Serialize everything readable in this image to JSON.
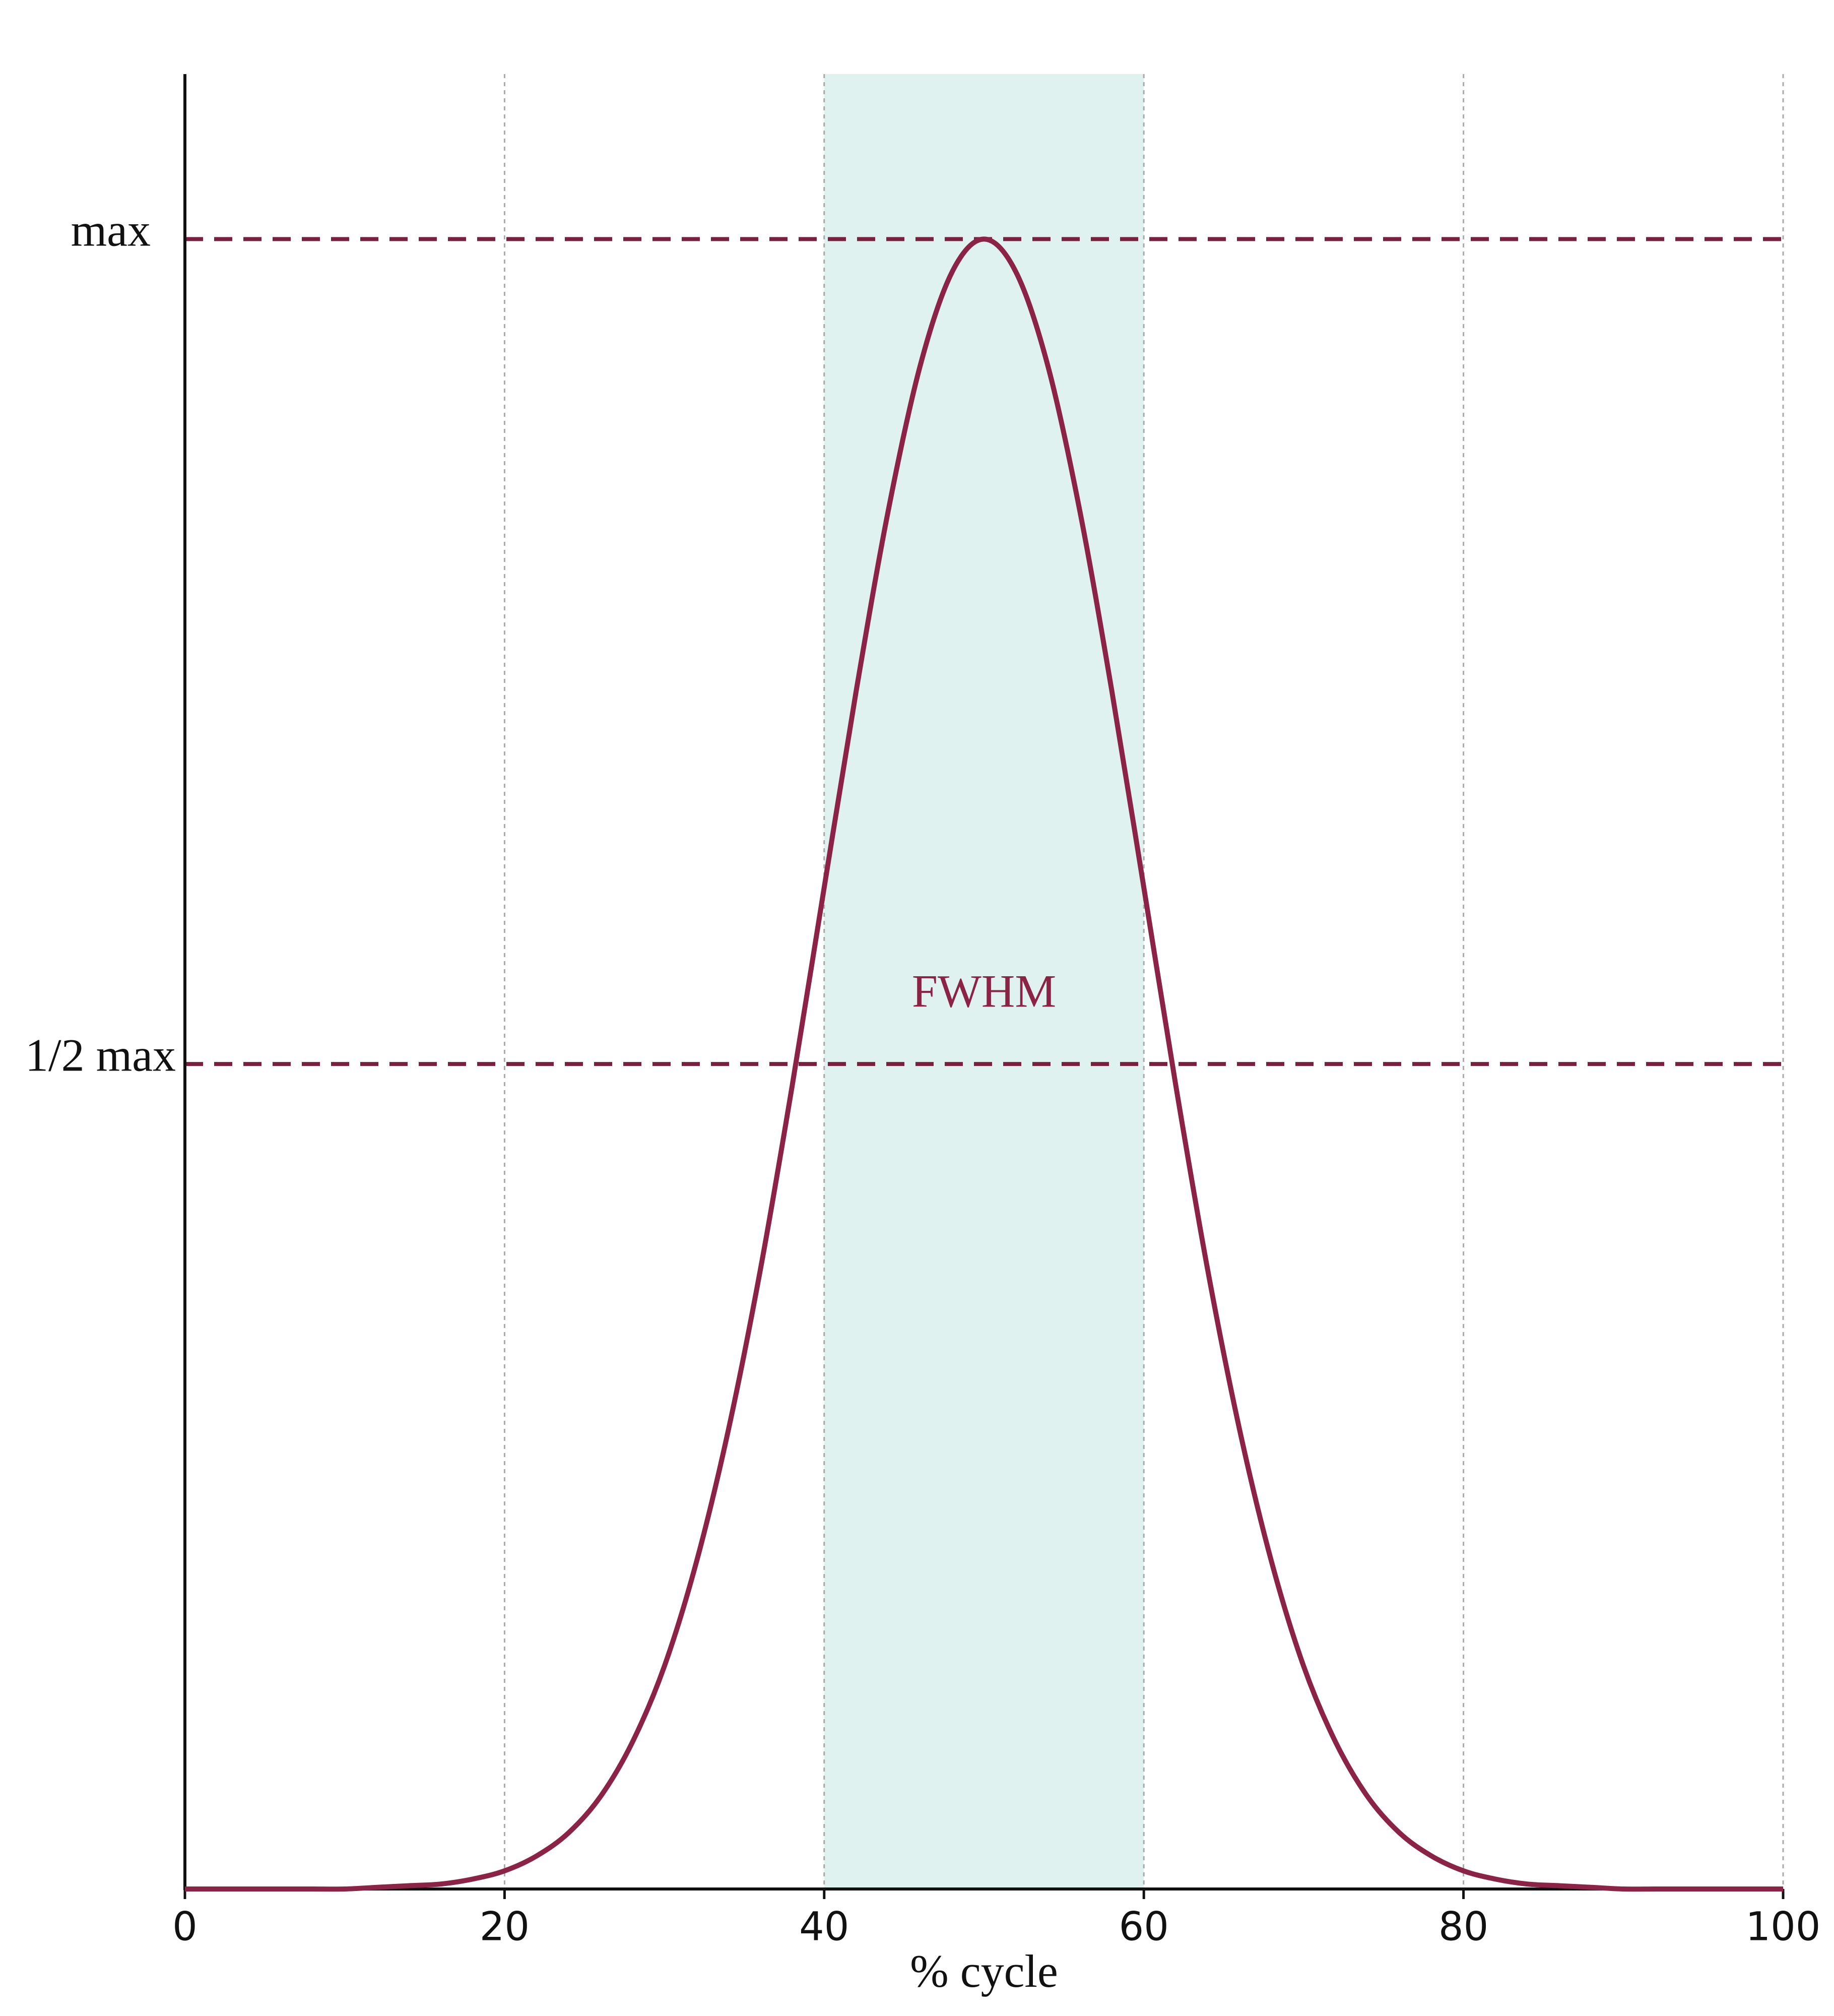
{
  "chart_data": {
    "type": "line",
    "x_label": "% cycle",
    "annotation": "FWHM",
    "x": [
      0,
      2,
      4,
      6,
      8,
      10,
      12,
      14,
      16,
      18,
      20,
      22,
      24,
      26,
      28,
      30,
      32,
      34,
      36,
      38,
      40,
      42,
      44,
      46,
      48,
      50,
      52,
      54,
      56,
      58,
      60,
      62,
      64,
      66,
      68,
      70,
      72,
      74,
      76,
      78,
      80,
      82,
      84,
      86,
      88,
      90,
      92,
      94,
      96,
      98,
      100
    ],
    "values": [
      0,
      0,
      0,
      0,
      0,
      0,
      0.001,
      0.002,
      0.003,
      0.006,
      0.011,
      0.02,
      0.034,
      0.056,
      0.089,
      0.135,
      0.198,
      0.278,
      0.375,
      0.487,
      0.607,
      0.726,
      0.835,
      0.923,
      0.98,
      1,
      0.98,
      0.923,
      0.835,
      0.726,
      0.607,
      0.487,
      0.375,
      0.278,
      0.198,
      0.135,
      0.089,
      0.056,
      0.034,
      0.02,
      0.011,
      0.006,
      0.003,
      0.002,
      0.001,
      0,
      0,
      0,
      0,
      0,
      0
    ],
    "color": "#8b2346",
    "reference_color": "#7a1f3d",
    "shaded_band": [
      40,
      60
    ],
    "band_color": "#e0f2ef",
    "xlim": [
      0,
      100
    ],
    "xticks": [
      0,
      20,
      40,
      60,
      80,
      100
    ],
    "ylim": [
      0,
      1.1
    ],
    "yticks": [
      {
        "value": 1,
        "label": "max"
      },
      {
        "value": 0.5,
        "label": "1/2 max"
      }
    ],
    "grid": true
  }
}
